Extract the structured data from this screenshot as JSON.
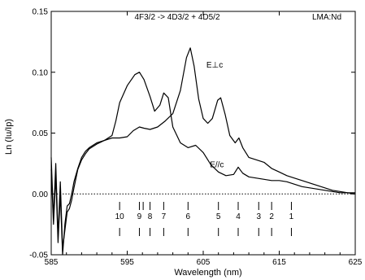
{
  "chart_data": {
    "type": "line",
    "title": "4F3/2 -> 4D3/2 + 4D5/2",
    "corner_label": "LMA:Nd",
    "xlabel": "Wavelength (nm)",
    "ylabel": "Ln (Iu/Ip)",
    "xlim": [
      585,
      625
    ],
    "ylim": [
      -0.05,
      0.15
    ],
    "x_ticks": [
      585,
      595,
      605,
      615,
      625
    ],
    "y_ticks": [
      -0.05,
      0.0,
      0.05,
      0.1,
      0.15
    ],
    "x_tick_labels": [
      "585",
      "595",
      "605",
      "615",
      "625"
    ],
    "y_tick_labels": [
      "-0.05",
      "0.00",
      "0.05",
      "0.10",
      "0.15"
    ],
    "grid": false,
    "series": [
      {
        "name": "E⊥c",
        "color": "#000000",
        "x": [
          585.0,
          585.3,
          585.6,
          585.9,
          586.2,
          586.5,
          586.8,
          587.1,
          587.4,
          587.7,
          588.0,
          588.5,
          589.0,
          589.5,
          590.0,
          591.0,
          592.0,
          593.0,
          594.0,
          595.0,
          595.8,
          596.6,
          597.2,
          598.0,
          599.0,
          600.0,
          601.0,
          602.0,
          602.8,
          603.3,
          603.8,
          604.4,
          605.0,
          605.6,
          606.2,
          606.9,
          607.3,
          607.9,
          608.5,
          609.2,
          609.7,
          610.2,
          611.0,
          612.0,
          613.0,
          614.0,
          615.0,
          616.0,
          617.0,
          618.0,
          619.0,
          620.0,
          621.0,
          622.0,
          623.0,
          624.0,
          625.0
        ],
        "values": [
          0.03,
          -0.02,
          0.025,
          -0.035,
          0.01,
          -0.045,
          -0.03,
          -0.015,
          -0.012,
          -0.005,
          0.005,
          0.02,
          0.028,
          0.033,
          0.037,
          0.041,
          0.044,
          0.046,
          0.046,
          0.047,
          0.052,
          0.055,
          0.054,
          0.053,
          0.055,
          0.06,
          0.066,
          0.085,
          0.112,
          0.12,
          0.105,
          0.078,
          0.062,
          0.058,
          0.062,
          0.077,
          0.079,
          0.065,
          0.048,
          0.042,
          0.046,
          0.038,
          0.03,
          0.028,
          0.026,
          0.021,
          0.018,
          0.015,
          0.013,
          0.011,
          0.009,
          0.007,
          0.005,
          0.003,
          0.002,
          0.001,
          0.001
        ]
      },
      {
        "name": "E//c",
        "color": "#000000",
        "x": [
          585.0,
          585.3,
          585.6,
          585.9,
          586.2,
          586.5,
          586.8,
          587.1,
          587.4,
          587.7,
          588.0,
          588.5,
          589.0,
          589.5,
          590.0,
          591.0,
          592.0,
          593.0,
          593.5,
          594.0,
          595.0,
          596.0,
          596.6,
          597.2,
          598.0,
          598.6,
          599.3,
          599.8,
          600.4,
          601.0,
          602.0,
          603.0,
          604.0,
          605.0,
          606.0,
          607.0,
          608.0,
          609.0,
          609.6,
          610.2,
          611.0,
          612.0,
          613.0,
          614.0,
          615.0,
          616.0,
          617.0,
          618.0,
          619.0,
          620.0,
          621.0,
          622.0,
          623.0,
          624.0,
          625.0
        ],
        "values": [
          0.02,
          -0.025,
          0.015,
          -0.04,
          0.0,
          -0.05,
          -0.025,
          -0.01,
          -0.008,
          0.0,
          0.01,
          0.021,
          0.03,
          0.035,
          0.038,
          0.042,
          0.044,
          0.048,
          0.06,
          0.075,
          0.089,
          0.098,
          0.1,
          0.094,
          0.08,
          0.068,
          0.073,
          0.083,
          0.079,
          0.055,
          0.042,
          0.038,
          0.04,
          0.034,
          0.024,
          0.018,
          0.015,
          0.016,
          0.022,
          0.017,
          0.014,
          0.013,
          0.012,
          0.011,
          0.011,
          0.01,
          0.008,
          0.006,
          0.005,
          0.004,
          0.003,
          0.002,
          0.001,
          0.001,
          0.0
        ]
      }
    ],
    "series_labels": [
      {
        "text": "E⊥c",
        "x": 606.5,
        "y": 0.104
      },
      {
        "text": "E//c",
        "x": 606.8,
        "y": 0.022
      }
    ],
    "markers": [
      {
        "label": "10",
        "x": 594.0
      },
      {
        "label": "9",
        "x": 596.6
      },
      {
        "label": "8",
        "x": 598.0
      },
      {
        "label": "7",
        "x": 599.8
      },
      {
        "label": "6",
        "x": 603.0
      },
      {
        "label": "5",
        "x": 607.0
      },
      {
        "label": "4",
        "x": 609.6
      },
      {
        "label": "3",
        "x": 612.3
      },
      {
        "label": "2",
        "x": 614.0
      },
      {
        "label": "1",
        "x": 616.6
      }
    ],
    "extra_marker_ticks": [
      597.1
    ]
  }
}
